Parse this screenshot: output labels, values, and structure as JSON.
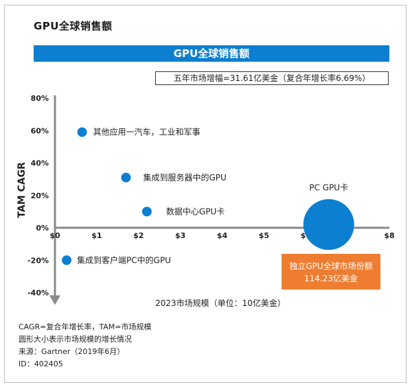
{
  "header": {
    "page_title": "GPU全球销售额",
    "banner_title": "GPU全球销售额",
    "growth_note": "五年市场增幅=31.61亿美金（复合年增长率6.69%）"
  },
  "chart_data": {
    "type": "scatter",
    "title": "GPU全球销售额",
    "xlabel": "2023市场规模（单位：10亿美金）",
    "ylabel": "TAM CAGR",
    "xlim": [
      0,
      8
    ],
    "ylim": [
      -40,
      80
    ],
    "x_ticks": [
      "$0",
      "$1",
      "$2",
      "$3",
      "$4",
      "$5",
      "$6",
      "$7",
      "$8"
    ],
    "y_ticks": [
      "80%",
      "60%",
      "40%",
      "20%",
      "0%",
      "-20%",
      "-40%"
    ],
    "bubble_color": "#0c7fd0",
    "highlight_color": "#ef7d31",
    "points": [
      {
        "label": "其他应用一汽车，工业和军事",
        "x": 0.65,
        "y": 59,
        "size": 0.13
      },
      {
        "label": "集成到服务器中的GPU",
        "x": 1.7,
        "y": 31,
        "size": 0.25
      },
      {
        "label": "数据中心GPU卡",
        "x": 2.2,
        "y": 10,
        "size": 0.35
      },
      {
        "label": "集成到客户端PC中的GPU",
        "x": 0.28,
        "y": -20,
        "size": 0.06
      },
      {
        "label": "PC GPU卡",
        "x": 6.55,
        "y": 2,
        "size": 11.42
      }
    ],
    "callout": {
      "line1": "独立GPU全球市场份额",
      "line2": "114.23亿美金"
    }
  },
  "notes": {
    "line1": "CAGR=复合年增长率，TAM=市场规模",
    "line2": "圆形大小表示市场规模的增长情况",
    "line3": "来源：Gartner（2019年6月）",
    "line4": "ID：402405"
  }
}
